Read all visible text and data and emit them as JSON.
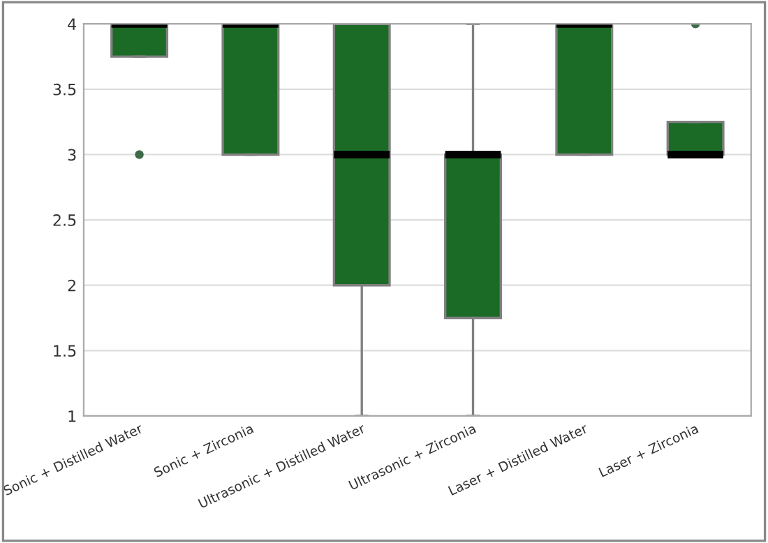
{
  "chart_data": {
    "type": "box",
    "categories": [
      "Sonic + Distilled Water",
      "Sonic + Zirconia",
      "Ultrasonic + Distilled Water",
      "Ultrasonic + Zirconia",
      "Laser + Distilled Water",
      "Laser + Zirconia"
    ],
    "color": "#1b6b26",
    "boxes": [
      {
        "low": 3.75,
        "q1": 3.75,
        "median": 4,
        "q3": 4,
        "high": 4,
        "outliers": [
          3
        ]
      },
      {
        "low": 3,
        "q1": 3,
        "median": 4,
        "q3": 4,
        "high": 4
      },
      {
        "low": 1,
        "q1": 2,
        "median": 3,
        "q3": 4,
        "high": 4
      },
      {
        "low": 1,
        "q1": 1.75,
        "median": 3,
        "q3": 3,
        "high": 4
      },
      {
        "low": 3,
        "q1": 3,
        "median": 4,
        "q3": 4,
        "high": 4
      },
      {
        "low": 3,
        "q1": 3,
        "median": 3,
        "q3": 3.25,
        "high": 3.25,
        "outliers": [
          4
        ]
      }
    ],
    "ylim": [
      1,
      4
    ],
    "yticks": [
      1,
      1.5,
      2,
      2.5,
      3,
      3.5,
      4
    ],
    "grid": "y"
  }
}
